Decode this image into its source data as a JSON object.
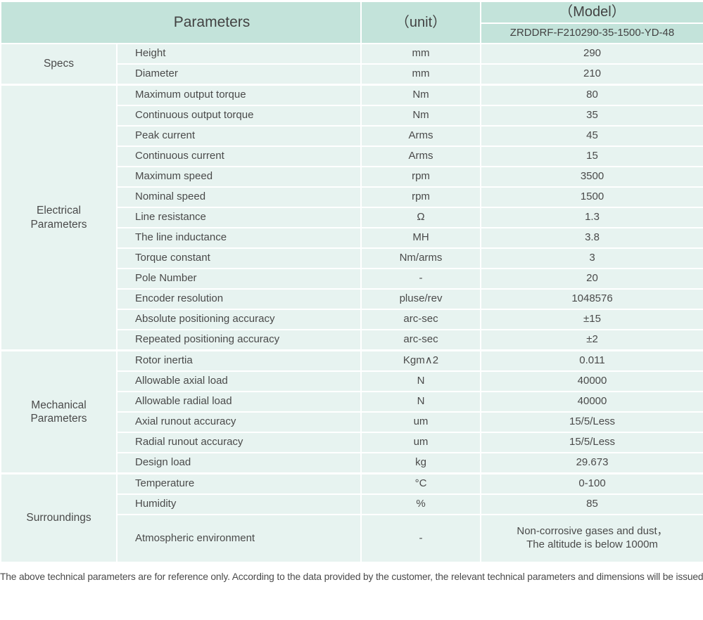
{
  "table": {
    "header": {
      "parameters_label": "Parameters",
      "unit_label": "（unit）",
      "model_label": "（Model）",
      "model_value": "ZRDDRF-F210290-35-1500-YD-48"
    },
    "sections": [
      {
        "category": "Specs",
        "rows": [
          {
            "name": "Height",
            "unit": "mm",
            "value": "290"
          },
          {
            "name": "Diameter",
            "unit": "mm",
            "value": "210"
          }
        ]
      },
      {
        "category": "Electrical\nParameters",
        "rows": [
          {
            "name": "Maximum output torque",
            "unit": "Nm",
            "value": "80"
          },
          {
            "name": "Continuous output torque",
            "unit": "Nm",
            "value": "35"
          },
          {
            "name": "Peak current",
            "unit": "Arms",
            "value": "45"
          },
          {
            "name": "Continuous current",
            "unit": "Arms",
            "value": "15"
          },
          {
            "name": "Maximum speed",
            "unit": "rpm",
            "value": "3500"
          },
          {
            "name": "Nominal speed",
            "unit": "rpm",
            "value": "1500"
          },
          {
            "name": "Line resistance",
            "unit": "Ω",
            "value": "1.3"
          },
          {
            "name": "The line inductance",
            "unit": "MH",
            "value": "3.8"
          },
          {
            "name": "Torque constant",
            "unit": "Nm/arms",
            "value": "3"
          },
          {
            "name": "Pole Number",
            "unit": "-",
            "value": "20"
          },
          {
            "name": "Encoder resolution",
            "unit": "pluse/rev",
            "value": "1048576"
          },
          {
            "name": "Absolute positioning accuracy",
            "unit": "arc-sec",
            "value": "±15"
          },
          {
            "name": "Repeated positioning accuracy",
            "unit": "arc-sec",
            "value": "±2"
          }
        ]
      },
      {
        "category": "Mechanical\nParameters",
        "rows": [
          {
            "name": "Rotor inertia",
            "unit": "Kgm∧2",
            "value": "0.011"
          },
          {
            "name": "Allowable axial load",
            "unit": "N",
            "value": "40000"
          },
          {
            "name": "Allowable radial load",
            "unit": "N",
            "value": "40000"
          },
          {
            "name": "Axial runout accuracy",
            "unit": "um",
            "value": "15/5/Less"
          },
          {
            "name": "Radial runout accuracy",
            "unit": "um",
            "value": "15/5/Less"
          },
          {
            "name": "Design load",
            "unit": "kg",
            "value": "29.673"
          }
        ]
      },
      {
        "category": "Surroundings",
        "rows": [
          {
            "name": "Temperature",
            "unit": "°C",
            "value": "0-100"
          },
          {
            "name": "Humidity",
            "unit": "%",
            "value": "85"
          },
          {
            "name": "Atmospheric environment",
            "unit": "-",
            "value": "Non-corrosive gases and dust，\nThe altitude is below 1000m",
            "tall": true
          }
        ]
      }
    ],
    "footnote": "The above technical parameters are for reference only. According to the data provided by the customer, the relevant technical parameters and dimensions will be issued.",
    "colors": {
      "header_bg": "#c3e3da",
      "row_bg": "#e7f3f0",
      "text": "#4a4a4a"
    }
  }
}
